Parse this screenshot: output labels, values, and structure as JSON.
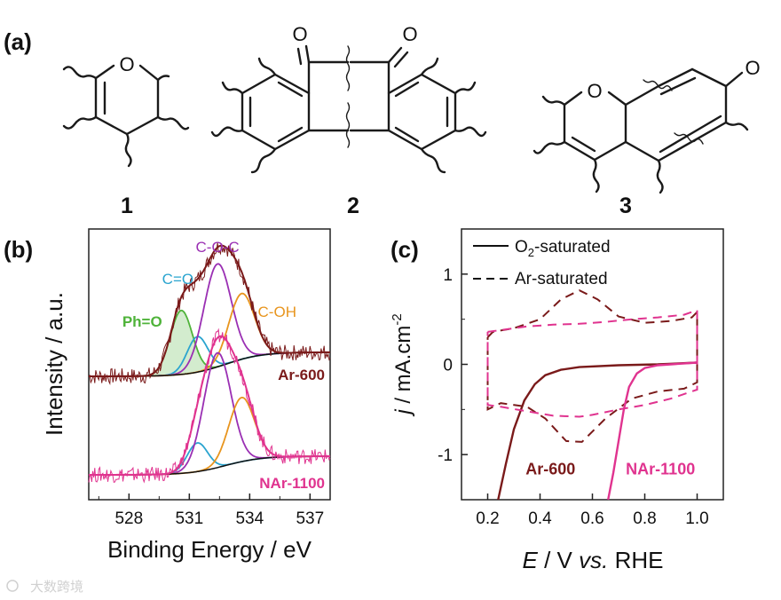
{
  "panel_a": {
    "label": "(a)",
    "structures": [
      {
        "number": "1",
        "atoms": [
          "O"
        ]
      },
      {
        "number": "2",
        "atoms": [
          "O",
          "O"
        ]
      },
      {
        "number": "3",
        "atoms": [
          "O",
          "O"
        ]
      }
    ]
  },
  "watermark": {
    "text": "大数跨境"
  },
  "chart_data": [
    {
      "type": "line",
      "panel": "(b)",
      "xlabel": "Binding Energy / eV",
      "ylabel": "Intensity / a.u.",
      "xlim": [
        526,
        538
      ],
      "x_reversed": false,
      "xticks": [
        528,
        531,
        534,
        537
      ],
      "yticks": [],
      "peak_labels": [
        {
          "text": "Ph=O",
          "position_eV": 530.6,
          "color": "#4fb33a"
        },
        {
          "text": "C=O",
          "position_eV": 531.4,
          "color": "#2aa4cf"
        },
        {
          "text": "C-O-C",
          "position_eV": 532.4,
          "color": "#9a2fb3"
        },
        {
          "text": "C-OH",
          "position_eV": 533.6,
          "color": "#e8951e"
        }
      ],
      "spectra": [
        {
          "name": "Ar-600",
          "color": "#7a1a1a",
          "raw_color": "#7a1a1a",
          "label_color": "#7a1a1a",
          "components": [
            {
              "name": "Ph=O",
              "center": 530.6,
              "fwhm": 1.3,
              "height": 0.36,
              "color": "#4fb33a",
              "filled": true
            },
            {
              "name": "C=O",
              "center": 531.4,
              "fwhm": 1.2,
              "height": 0.2,
              "color": "#2aa4cf",
              "filled": false
            },
            {
              "name": "C-O-C",
              "center": 532.4,
              "fwhm": 1.6,
              "height": 0.58,
              "color": "#9a2fb3",
              "filled": false
            },
            {
              "name": "C-OH",
              "center": 533.6,
              "fwhm": 1.5,
              "height": 0.37,
              "color": "#e8951e",
              "filled": false
            }
          ]
        },
        {
          "name": "NAr-1100",
          "color": "#e0338f",
          "raw_color": "#e0338f",
          "label_color": "#e0338f",
          "components": [
            {
              "name": "C=O",
              "center": 531.4,
              "fwhm": 1.2,
              "height": 0.17,
              "color": "#2aa4cf",
              "filled": false
            },
            {
              "name": "C-O-C",
              "center": 532.4,
              "fwhm": 1.6,
              "height": 0.68,
              "color": "#9a2fb3",
              "filled": false
            },
            {
              "name": "C-OH",
              "center": 533.6,
              "fwhm": 1.5,
              "height": 0.38,
              "color": "#e8951e",
              "filled": false
            }
          ]
        }
      ]
    },
    {
      "type": "line",
      "panel": "(c)",
      "xlabel_italic": "E",
      "xlabel_rest": " / V ",
      "xlabel_vs": "vs.",
      "xlabel_end": " RHE",
      "ylabel_italic": "j",
      "ylabel_rest": " / mA.cm",
      "ylabel_sup": "-2",
      "xlim": [
        0.1,
        1.1
      ],
      "ylim": [
        -1.5,
        1.5
      ],
      "xticks": [
        0.2,
        0.4,
        0.6,
        0.8,
        1.0
      ],
      "xtick_labels": [
        "0.2",
        "0.4",
        "0.6",
        "0.8",
        "1.0"
      ],
      "yticks": [
        -1,
        0,
        1
      ],
      "ytick_labels": [
        "-1",
        "0",
        "1"
      ],
      "legend": [
        {
          "label_main": "O",
          "label_sub": "2",
          "label_rest": "-saturated",
          "style": "solid"
        },
        {
          "label_main": "Ar-saturated",
          "label_sub": "",
          "label_rest": "",
          "style": "dashed"
        }
      ],
      "series": [
        {
          "name": "Ar-600",
          "color": "#7a1a1a",
          "o2_lsv": [
            [
              0.24,
              -1.5
            ],
            [
              0.27,
              -1.1
            ],
            [
              0.3,
              -0.72
            ],
            [
              0.34,
              -0.4
            ],
            [
              0.38,
              -0.22
            ],
            [
              0.42,
              -0.12
            ],
            [
              0.48,
              -0.06
            ],
            [
              0.55,
              -0.03
            ],
            [
              0.7,
              -0.01
            ],
            [
              0.85,
              0.0
            ],
            [
              1.0,
              0.02
            ]
          ],
          "ar_cv_upper": [
            [
              0.2,
              0.3
            ],
            [
              0.22,
              0.36
            ],
            [
              0.3,
              0.4
            ],
            [
              0.4,
              0.5
            ],
            [
              0.48,
              0.72
            ],
            [
              0.55,
              0.82
            ],
            [
              0.62,
              0.72
            ],
            [
              0.7,
              0.53
            ],
            [
              0.8,
              0.46
            ],
            [
              0.9,
              0.48
            ],
            [
              0.98,
              0.52
            ],
            [
              1.0,
              0.58
            ]
          ],
          "ar_cv_lower": [
            [
              1.0,
              0.58
            ],
            [
              1.0,
              -0.2
            ],
            [
              0.95,
              -0.27
            ],
            [
              0.85,
              -0.3
            ],
            [
              0.75,
              -0.38
            ],
            [
              0.65,
              -0.6
            ],
            [
              0.56,
              -0.86
            ],
            [
              0.5,
              -0.85
            ],
            [
              0.42,
              -0.6
            ],
            [
              0.35,
              -0.47
            ],
            [
              0.25,
              -0.43
            ],
            [
              0.2,
              -0.5
            ],
            [
              0.2,
              0.3
            ]
          ]
        },
        {
          "name": "NAr-1100",
          "color": "#e0338f",
          "o2_lsv": [
            [
              0.66,
              -1.5
            ],
            [
              0.68,
              -1.2
            ],
            [
              0.7,
              -0.85
            ],
            [
              0.72,
              -0.5
            ],
            [
              0.74,
              -0.25
            ],
            [
              0.77,
              -0.1
            ],
            [
              0.8,
              -0.04
            ],
            [
              0.85,
              -0.01
            ],
            [
              0.9,
              0.0
            ],
            [
              1.0,
              0.02
            ]
          ],
          "ar_cv_upper": [
            [
              0.2,
              0.36
            ],
            [
              0.25,
              0.38
            ],
            [
              0.35,
              0.42
            ],
            [
              0.45,
              0.44
            ],
            [
              0.55,
              0.45
            ],
            [
              0.65,
              0.47
            ],
            [
              0.75,
              0.5
            ],
            [
              0.85,
              0.52
            ],
            [
              0.95,
              0.55
            ],
            [
              1.0,
              0.6
            ]
          ],
          "ar_cv_lower": [
            [
              1.0,
              0.6
            ],
            [
              1.0,
              -0.28
            ],
            [
              0.9,
              -0.38
            ],
            [
              0.8,
              -0.45
            ],
            [
              0.7,
              -0.5
            ],
            [
              0.6,
              -0.56
            ],
            [
              0.55,
              -0.58
            ],
            [
              0.45,
              -0.57
            ],
            [
              0.35,
              -0.52
            ],
            [
              0.25,
              -0.47
            ],
            [
              0.2,
              -0.45
            ],
            [
              0.2,
              0.36
            ]
          ]
        }
      ],
      "curve_labels": [
        {
          "text": "Ar-600",
          "color": "#7a1a1a"
        },
        {
          "text": "NAr-1100",
          "color": "#e0338f"
        }
      ]
    }
  ]
}
